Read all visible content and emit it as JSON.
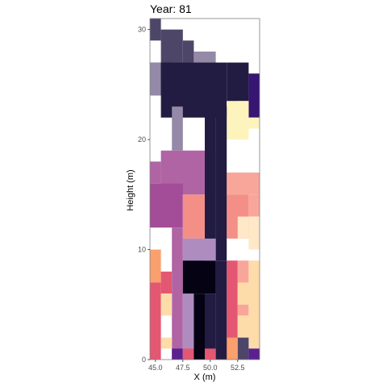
{
  "chart_data": {
    "type": "heatmap",
    "title": "Year: 81",
    "xlabel": "X (m)",
    "ylabel": "Height (m)",
    "xlim": [
      44.5,
      54.5
    ],
    "ylim": [
      0,
      31
    ],
    "x_ticks": [
      {
        "value": 45.0,
        "label": "45.0"
      },
      {
        "value": 47.5,
        "label": "47.5"
      },
      {
        "value": 50.0,
        "label": "50.0"
      },
      {
        "value": 52.5,
        "label": "52.5"
      }
    ],
    "y_ticks": [
      {
        "value": 0,
        "label": "0"
      },
      {
        "value": 10,
        "label": "10"
      },
      {
        "value": 20,
        "label": "20"
      },
      {
        "value": 30,
        "label": "30"
      }
    ],
    "grid": false,
    "legend": "none",
    "cells": [
      {
        "x0": 44.5,
        "x1": 45.5,
        "y0": 29,
        "y1": 31,
        "color": "#4e4669"
      },
      {
        "x0": 45.5,
        "x1": 47.5,
        "y0": 27,
        "y1": 30,
        "color": "#4e4669"
      },
      {
        "x0": 47.5,
        "x1": 48.5,
        "y0": 27,
        "y1": 29,
        "color": "#4e4669"
      },
      {
        "x0": 44.5,
        "x1": 48.5,
        "y0": 25,
        "y1": 27,
        "color": "#4e4669"
      },
      {
        "x0": 48.5,
        "x1": 50.5,
        "y0": 26,
        "y1": 28,
        "color": "#948aa7"
      },
      {
        "x0": 44.5,
        "x1": 45.5,
        "y0": 24,
        "y1": 27,
        "color": "#948aa7"
      },
      {
        "x0": 45.5,
        "x1": 51.5,
        "y0": 22,
        "y1": 27,
        "color": "#221c42"
      },
      {
        "x0": 51.5,
        "x1": 53.5,
        "y0": 23.5,
        "y1": 27,
        "color": "#221c42"
      },
      {
        "x0": 53.5,
        "x1": 54.5,
        "y0": 22,
        "y1": 26,
        "color": "#371572"
      },
      {
        "x0": 52.5,
        "x1": 53.5,
        "y0": 21,
        "y1": 23.5,
        "color": "#fcf3bd"
      },
      {
        "x0": 51.5,
        "x1": 53.5,
        "y0": 20,
        "y1": 23.5,
        "color": "#fcf3bd"
      },
      {
        "x0": 53.5,
        "x1": 54.5,
        "y0": 21,
        "y1": 22,
        "color": "#fcf3bd"
      },
      {
        "x0": 46.5,
        "x1": 47.5,
        "y0": 19,
        "y1": 23,
        "color": "#948aa7"
      },
      {
        "x0": 44.5,
        "x1": 45.5,
        "y0": 16,
        "y1": 18,
        "color": "#b064a4"
      },
      {
        "x0": 45.5,
        "x1": 50.5,
        "y0": 15,
        "y1": 19,
        "color": "#b064a4"
      },
      {
        "x0": 44.5,
        "x1": 47.5,
        "y0": 12,
        "y1": 16,
        "color": "#a34c97"
      },
      {
        "x0": 46.5,
        "x1": 47.5,
        "y0": 0,
        "y1": 12,
        "color": "#b064a4"
      },
      {
        "x0": 51.5,
        "x1": 54.5,
        "y0": 15,
        "y1": 17,
        "color": "#f9a69a"
      },
      {
        "x0": 47.5,
        "x1": 49.5,
        "y0": 11,
        "y1": 15,
        "color": "#f38f87"
      },
      {
        "x0": 49.5,
        "x1": 50.5,
        "y0": 11,
        "y1": 15,
        "color": "#f9a69a"
      },
      {
        "x0": 51.5,
        "x1": 53.5,
        "y0": 11,
        "y1": 15,
        "color": "#f38f87"
      },
      {
        "x0": 53.5,
        "x1": 54.5,
        "y0": 13,
        "y1": 15,
        "color": "#f9a69a"
      },
      {
        "x0": 52.5,
        "x1": 53.5,
        "y0": 11,
        "y1": 13,
        "color": "#fee8c8"
      },
      {
        "x0": 53.5,
        "x1": 54.5,
        "y0": 10,
        "y1": 13,
        "color": "#fee8c8"
      },
      {
        "x0": 47.5,
        "x1": 49.5,
        "y0": 9,
        "y1": 11,
        "color": "#ae8cc0"
      },
      {
        "x0": 44.5,
        "x1": 45.5,
        "y0": 7,
        "y1": 10,
        "color": "#f9a06e"
      },
      {
        "x0": 44.5,
        "x1": 45.5,
        "y0": 0,
        "y1": 7,
        "color": "#e45772"
      },
      {
        "x0": 45.5,
        "x1": 46.5,
        "y0": 6,
        "y1": 8,
        "color": "#e45772"
      },
      {
        "x0": 45.5,
        "x1": 46.5,
        "y0": 4,
        "y1": 6,
        "color": "#fddcaa"
      },
      {
        "x0": 45.5,
        "x1": 46.5,
        "y0": 1,
        "y1": 2,
        "color": "#fddcaa"
      },
      {
        "x0": 46.5,
        "x1": 47.5,
        "y0": 0,
        "y1": 1,
        "color": "#5b208f"
      },
      {
        "x0": 51.5,
        "x1": 52.5,
        "y0": 0,
        "y1": 9,
        "color": "#e45772"
      },
      {
        "x0": 52.5,
        "x1": 53.5,
        "y0": 7,
        "y1": 9,
        "color": "#f9a69a"
      },
      {
        "x0": 53.5,
        "x1": 54.5,
        "y0": 7,
        "y1": 9,
        "color": "#fddcaa"
      },
      {
        "x0": 52.5,
        "x1": 53.5,
        "y0": 5,
        "y1": 7,
        "color": "#fddcaa"
      },
      {
        "x0": 52.5,
        "x1": 53.5,
        "y0": 4,
        "y1": 5,
        "color": "#f9a69a"
      },
      {
        "x0": 52.5,
        "x1": 53.5,
        "y0": 2,
        "y1": 4,
        "color": "#fddcaa"
      },
      {
        "x0": 53.5,
        "x1": 54.5,
        "y0": 1,
        "y1": 7,
        "color": "#fddcaa"
      },
      {
        "x0": 52.5,
        "x1": 53.5,
        "y0": 0,
        "y1": 2,
        "color": "#4e4669"
      },
      {
        "x0": 53.5,
        "x1": 54.5,
        "y0": 0,
        "y1": 1,
        "color": "#5b208f"
      },
      {
        "x0": 51.5,
        "x1": 52.5,
        "y0": 0,
        "y1": 2,
        "color": "#f9a06e"
      },
      {
        "x0": 47.5,
        "x1": 48.5,
        "y0": 0,
        "y1": 6,
        "color": "#ae8cc0"
      },
      {
        "x0": 47.5,
        "x1": 48.5,
        "y0": 0,
        "y1": 1,
        "color": "#e45772"
      },
      {
        "x0": 48.5,
        "x1": 49.5,
        "y0": 0,
        "y1": 6,
        "color": "#050313"
      },
      {
        "x0": 49.5,
        "x1": 50.5,
        "y0": 0,
        "y1": 6,
        "color": "#221c42"
      },
      {
        "x0": 50.5,
        "x1": 51.5,
        "y0": 0,
        "y1": 9,
        "color": "#221c42"
      },
      {
        "x0": 49.5,
        "x1": 50.5,
        "y0": 0,
        "y1": 1,
        "color": "#e45772"
      },
      {
        "x0": 47.5,
        "x1": 50.5,
        "y0": 6,
        "y1": 9,
        "color": "#050313"
      },
      {
        "x0": 49.5,
        "x1": 50.5,
        "y0": 9,
        "y1": 23,
        "color": "#221c42"
      },
      {
        "x0": 50.5,
        "x1": 51.5,
        "y0": 9,
        "y1": 23,
        "color": "#221c42"
      },
      {
        "x0": 49.5,
        "x1": 50.5,
        "y0": 9,
        "y1": 11,
        "color": "#ae8cc0"
      },
      {
        "x0": 45.5,
        "x1": 46.5,
        "y0": 24,
        "y1": 27,
        "color": "#221c42"
      }
    ]
  }
}
